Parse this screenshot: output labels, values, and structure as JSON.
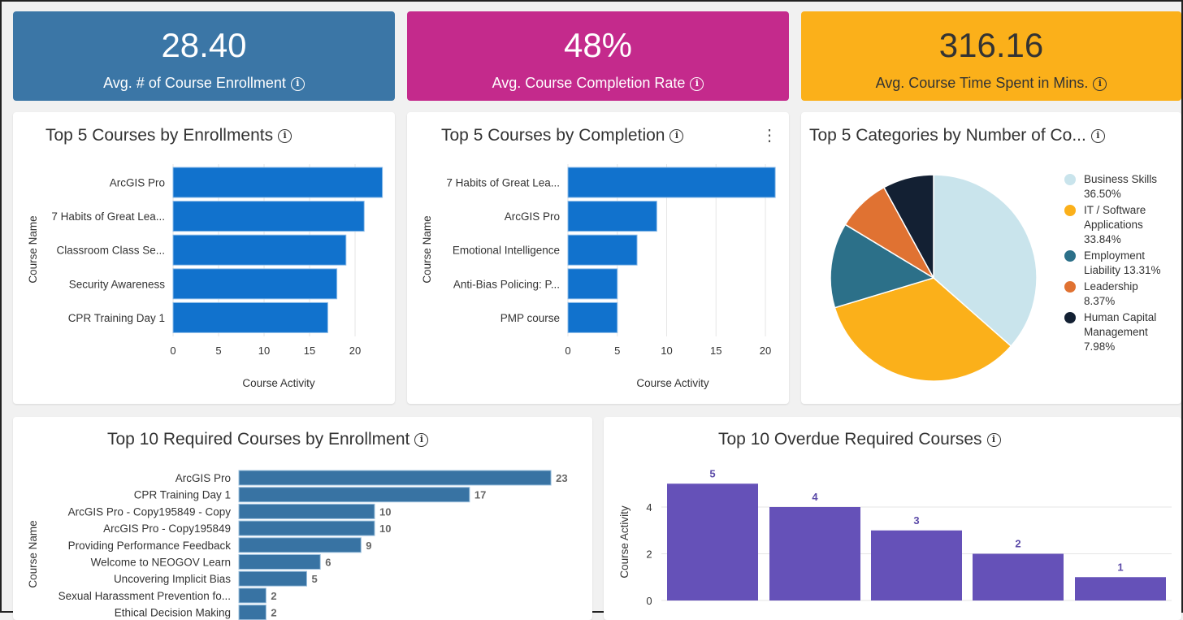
{
  "kpis": [
    {
      "value": "28.40",
      "label": "Avg. # of Course Enrollment",
      "color": "#3b76a6"
    },
    {
      "value": "48%",
      "label": "Avg. Course Completion Rate",
      "color": "#c42a8c"
    },
    {
      "value": "316.16",
      "label": "Avg. Course Time Spent in Mins.",
      "color": "#fbb01a"
    }
  ],
  "cards": {
    "enroll_title": "Top 5 Courses by Enrollments",
    "completion_title": "Top 5 Courses by Completion",
    "categories_title": "Top 5 Categories by Number of Co...",
    "required_title": "Top 10 Required Courses by Enrollment",
    "overdue_title": "Top 10 Overdue Required Courses",
    "info_icon": "i",
    "menu_icon": "⋮"
  },
  "chart_data": [
    {
      "type": "bar",
      "orientation": "horizontal",
      "title": "Top 5 Courses by Enrollments",
      "xlabel": "Course Activity",
      "ylabel": "Course Name",
      "xlim": [
        0,
        23
      ],
      "xticks": [
        0,
        5,
        10,
        15,
        20
      ],
      "color": "#1172cd",
      "categories": [
        "ArcGIS Pro",
        "7 Habits of Great Lea...",
        "Classroom Class Se...",
        "Security Awareness",
        "CPR Training Day 1"
      ],
      "values": [
        23,
        21,
        19,
        18,
        17
      ]
    },
    {
      "type": "bar",
      "orientation": "horizontal",
      "title": "Top 5 Courses by Completion",
      "xlabel": "Course Activity",
      "ylabel": "Course Name",
      "xlim": [
        0,
        21
      ],
      "xticks": [
        0,
        5,
        10,
        15,
        20
      ],
      "color": "#1172cd",
      "categories": [
        "7 Habits of Great Lea...",
        "ArcGIS Pro",
        "Emotional Intelligence",
        "Anti-Bias Policing: P...",
        "PMP course"
      ],
      "values": [
        21,
        9,
        7,
        5,
        5
      ]
    },
    {
      "type": "pie",
      "title": "Top 5 Categories by Number of Co...",
      "legend": "right",
      "slices": [
        {
          "label": "Business Skills 36.50%",
          "value": 36.5,
          "color": "#c9e4ec"
        },
        {
          "label": "IT / Software Applications 33.84%",
          "value": 33.84,
          "color": "#fbb01a"
        },
        {
          "label": "Employment Liability 13.31%",
          "value": 13.31,
          "color": "#2c7089"
        },
        {
          "label": "Leadership 8.37%",
          "value": 8.37,
          "color": "#e07232"
        },
        {
          "label": "Human Capital Management 7.98%",
          "value": 7.98,
          "color": "#132033"
        }
      ]
    },
    {
      "type": "bar",
      "orientation": "horizontal",
      "title": "Top 10 Required Courses by Enrollment",
      "ylabel": "Course Name",
      "color": "#3873a3",
      "xlim": [
        0,
        23
      ],
      "categories": [
        "ArcGIS Pro",
        "CPR Training Day 1",
        "ArcGIS Pro - Copy195849 - Copy",
        "ArcGIS Pro - Copy195849",
        "Providing Performance Feedback",
        "Welcome to NEOGOV Learn",
        "Uncovering Implicit Bias",
        "Sexual Harassment Prevention fo...",
        "Ethical Decision Making"
      ],
      "values": [
        23,
        17,
        10,
        10,
        9,
        6,
        5,
        2,
        2
      ]
    },
    {
      "type": "bar",
      "orientation": "vertical",
      "title": "Top 10 Overdue Required Courses",
      "ylabel": "Course Activity",
      "ylim": [
        0,
        5
      ],
      "yticks": [
        0,
        2,
        4
      ],
      "color": "#6551b8",
      "values": [
        5,
        4,
        3,
        2,
        1
      ]
    }
  ]
}
